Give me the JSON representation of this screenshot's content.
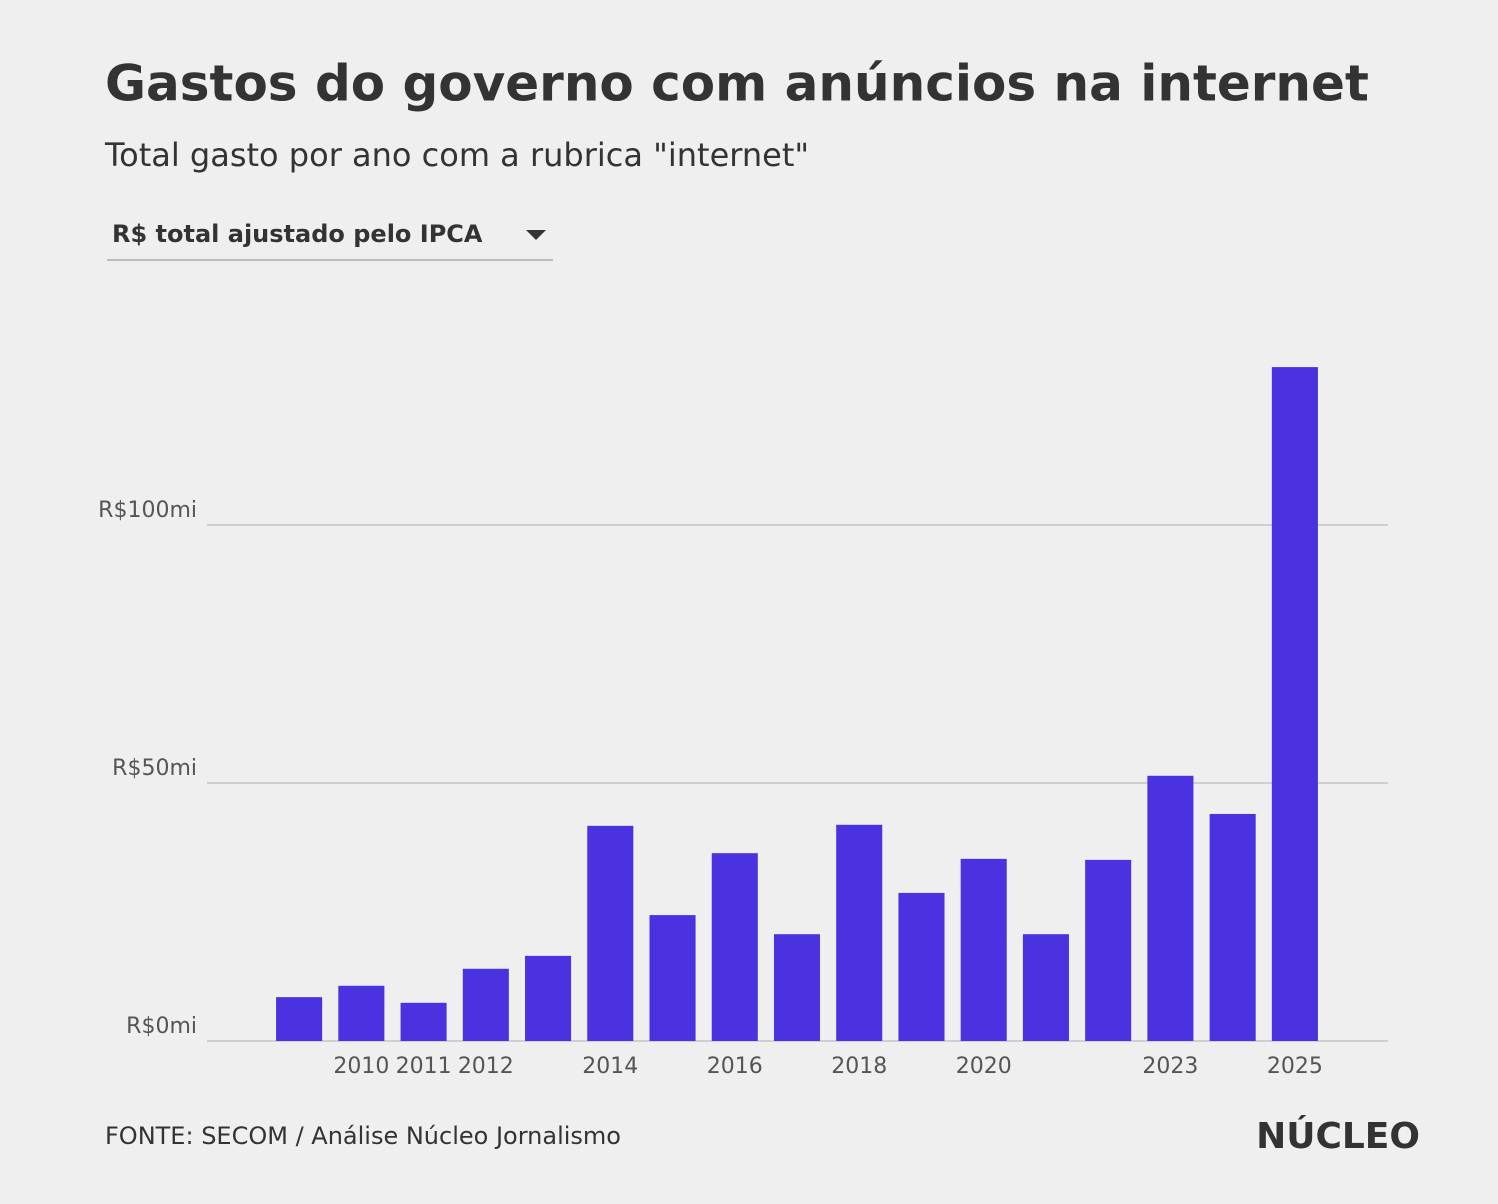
{
  "chart_data": {
    "type": "bar",
    "title": "Gastos do governo com anúncios na internet",
    "subtitle": "Total gasto por ano com a rubrica \"internet\"",
    "selector": "R$ total ajustado pelo IPCA",
    "source": "FONTE: SECOM / Análise Núcleo Jornalismo",
    "brand": "NÚCLEO",
    "categories": [
      null,
      "2010",
      "2011",
      "2012",
      null,
      "2014",
      null,
      "2016",
      null,
      "2018",
      null,
      "2020",
      null,
      null,
      "2023",
      null,
      "2025"
    ],
    "values": [
      8.5,
      10.7,
      7.4,
      14.0,
      16.5,
      41.7,
      24.4,
      36.4,
      20.7,
      41.9,
      28.7,
      35.3,
      20.7,
      35.1,
      51.4,
      44.0,
      130.6
    ],
    "color": "#4b32e0",
    "ylim": [
      0,
      140
    ],
    "yticks": [
      {
        "value": 0,
        "label": "R$0mi"
      },
      {
        "value": 50,
        "label": "R$50mi"
      },
      {
        "value": 100,
        "label": "R$100mi"
      }
    ],
    "grid": true
  }
}
